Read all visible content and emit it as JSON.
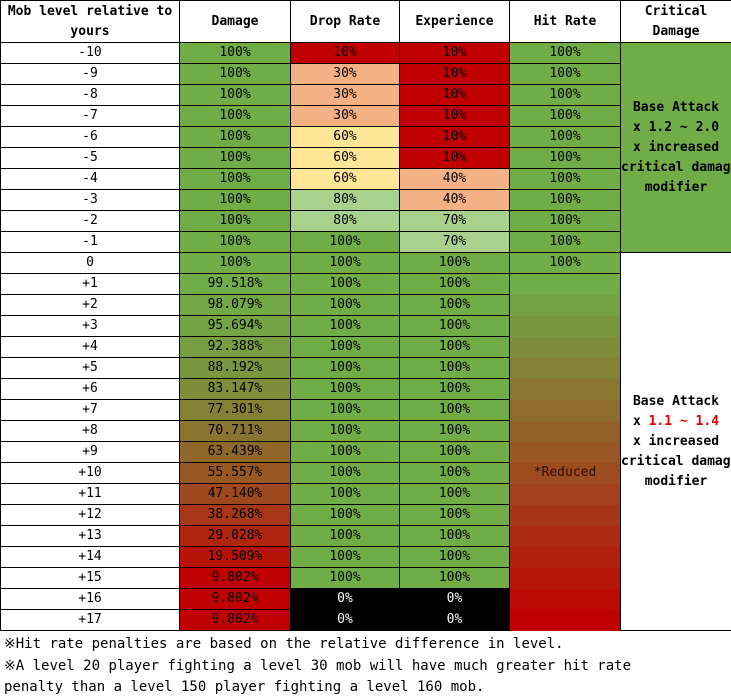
{
  "headers": {
    "level": "Mob level relative to yours",
    "damage": "Damage",
    "drop": "Drop Rate",
    "exp": "Experience",
    "hit": "Hit Rate",
    "crit": "Critical Damage"
  },
  "rows": [
    {
      "level": "-10",
      "damage": "100%",
      "drop": "10%",
      "exp": "10%",
      "hit": "100%"
    },
    {
      "level": "-9",
      "damage": "100%",
      "drop": "30%",
      "exp": "10%",
      "hit": "100%"
    },
    {
      "level": "-8",
      "damage": "100%",
      "drop": "30%",
      "exp": "10%",
      "hit": "100%"
    },
    {
      "level": "-7",
      "damage": "100%",
      "drop": "30%",
      "exp": "10%",
      "hit": "100%"
    },
    {
      "level": "-6",
      "damage": "100%",
      "drop": "60%",
      "exp": "10%",
      "hit": "100%"
    },
    {
      "level": "-5",
      "damage": "100%",
      "drop": "60%",
      "exp": "10%",
      "hit": "100%"
    },
    {
      "level": "-4",
      "damage": "100%",
      "drop": "60%",
      "exp": "40%",
      "hit": "100%"
    },
    {
      "level": "-3",
      "damage": "100%",
      "drop": "80%",
      "exp": "40%",
      "hit": "100%"
    },
    {
      "level": "-2",
      "damage": "100%",
      "drop": "80%",
      "exp": "70%",
      "hit": "100%"
    },
    {
      "level": "-1",
      "damage": "100%",
      "drop": "100%",
      "exp": "70%",
      "hit": "100%"
    },
    {
      "level": "0",
      "damage": "100%",
      "drop": "100%",
      "exp": "100%",
      "hit": "100%"
    },
    {
      "level": "+1",
      "damage": "99.518%",
      "drop": "100%",
      "exp": "100%",
      "hit": ""
    },
    {
      "level": "+2",
      "damage": "98.079%",
      "drop": "100%",
      "exp": "100%",
      "hit": ""
    },
    {
      "level": "+3",
      "damage": "95.694%",
      "drop": "100%",
      "exp": "100%",
      "hit": ""
    },
    {
      "level": "+4",
      "damage": "92.388%",
      "drop": "100%",
      "exp": "100%",
      "hit": ""
    },
    {
      "level": "+5",
      "damage": "88.192%",
      "drop": "100%",
      "exp": "100%",
      "hit": ""
    },
    {
      "level": "+6",
      "damage": "83.147%",
      "drop": "100%",
      "exp": "100%",
      "hit": ""
    },
    {
      "level": "+7",
      "damage": "77.301%",
      "drop": "100%",
      "exp": "100%",
      "hit": ""
    },
    {
      "level": "+8",
      "damage": "70.711%",
      "drop": "100%",
      "exp": "100%",
      "hit": ""
    },
    {
      "level": "+9",
      "damage": "63.439%",
      "drop": "100%",
      "exp": "100%",
      "hit": ""
    },
    {
      "level": "+10",
      "damage": "55.557%",
      "drop": "100%",
      "exp": "100%",
      "hit": "*Reduced"
    },
    {
      "level": "+11",
      "damage": "47.140%",
      "drop": "100%",
      "exp": "100%",
      "hit": ""
    },
    {
      "level": "+12",
      "damage": "38.268%",
      "drop": "100%",
      "exp": "100%",
      "hit": ""
    },
    {
      "level": "+13",
      "damage": "29.028%",
      "drop": "100%",
      "exp": "100%",
      "hit": ""
    },
    {
      "level": "+14",
      "damage": "19.509%",
      "drop": "100%",
      "exp": "100%",
      "hit": ""
    },
    {
      "level": "+15",
      "damage": "9.802%",
      "drop": "100%",
      "exp": "100%",
      "hit": ""
    },
    {
      "level": "+16",
      "damage": "9.802%",
      "drop": "0%",
      "exp": "0%",
      "hit": ""
    },
    {
      "level": "+17",
      "damage": "9.802%",
      "drop": "0%",
      "exp": "0%",
      "hit": ""
    }
  ],
  "crit_upper": {
    "line1": "Base Attack",
    "line2": "x 1.2 ~ 2.0",
    "line3": "x increased",
    "line4": "critical damage",
    "line5": "modifier"
  },
  "crit_lower": {
    "line1": "Base Attack",
    "line2_prefix": "x ",
    "line2_highlight": "1.1 ~ 1.4",
    "line3": "x increased",
    "line4": "critical damage",
    "line5": "modifier"
  },
  "notes": [
    "※Hit rate penalties are based on the relative difference in level.",
    "※A level 20 player fighting a level 30 mob will have much greater hit rate",
    "penalty than a level 150 player fighting a level 160 mob."
  ],
  "colors": {
    "green": "#70ad47",
    "dark_red": "#c00000",
    "salmon": "#f4b183",
    "light_yellow": "#ffe699",
    "light_green": "#a9d18e",
    "black": "#000000",
    "crit_green": "#70ad47",
    "highlight_red": "#e00000"
  }
}
